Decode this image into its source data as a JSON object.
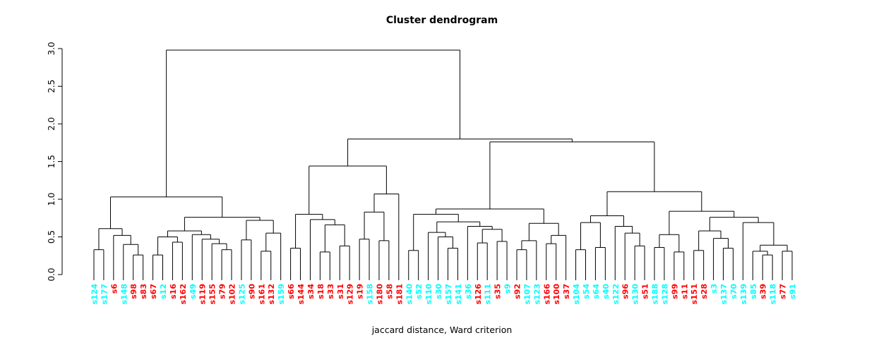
{
  "chart_data": {
    "type": "dendrogram",
    "title": "Cluster dendrogram",
    "xlabel": "jaccard distance, Ward criterion",
    "ylabel": "",
    "y_axis": {
      "tick_labels": [
        "0.0",
        "0.5",
        "1.0",
        "1.5",
        "2.0",
        "2.5",
        "3.0"
      ],
      "tick_values": [
        0.0,
        0.5,
        1.0,
        1.5,
        2.0,
        2.5,
        3.0
      ],
      "range": [
        0.0,
        3.0
      ]
    },
    "legend": "none",
    "grid": false,
    "colors": {
      "cyan": "#00FFFF",
      "red": "#FF0000",
      "line": "#000000",
      "background": "#FFFFFF"
    },
    "root_height": 2.98,
    "leaves": [
      {
        "label": "s124",
        "group": "cyan"
      },
      {
        "label": "s177",
        "group": "cyan"
      },
      {
        "label": "s6",
        "group": "red"
      },
      {
        "label": "s148",
        "group": "cyan"
      },
      {
        "label": "s98",
        "group": "red"
      },
      {
        "label": "s83",
        "group": "red"
      },
      {
        "label": "s67",
        "group": "red"
      },
      {
        "label": "s12",
        "group": "cyan"
      },
      {
        "label": "s16",
        "group": "red"
      },
      {
        "label": "s162",
        "group": "red"
      },
      {
        "label": "s49",
        "group": "cyan"
      },
      {
        "label": "s119",
        "group": "red"
      },
      {
        "label": "s155",
        "group": "red"
      },
      {
        "label": "s79",
        "group": "red"
      },
      {
        "label": "s102",
        "group": "red"
      },
      {
        "label": "s125",
        "group": "cyan"
      },
      {
        "label": "s90",
        "group": "red"
      },
      {
        "label": "s161",
        "group": "red"
      },
      {
        "label": "s132",
        "group": "red"
      },
      {
        "label": "s159",
        "group": "cyan"
      },
      {
        "label": "s66",
        "group": "red"
      },
      {
        "label": "s144",
        "group": "red"
      },
      {
        "label": "s34",
        "group": "red"
      },
      {
        "label": "s18",
        "group": "red"
      },
      {
        "label": "s33",
        "group": "red"
      },
      {
        "label": "s31",
        "group": "red"
      },
      {
        "label": "s129",
        "group": "red"
      },
      {
        "label": "s19",
        "group": "red"
      },
      {
        "label": "s158",
        "group": "cyan"
      },
      {
        "label": "s180",
        "group": "red"
      },
      {
        "label": "s58",
        "group": "red"
      },
      {
        "label": "s181",
        "group": "red"
      },
      {
        "label": "s140",
        "group": "cyan"
      },
      {
        "label": "s52",
        "group": "cyan"
      },
      {
        "label": "s110",
        "group": "cyan"
      },
      {
        "label": "s30",
        "group": "cyan"
      },
      {
        "label": "s157",
        "group": "cyan"
      },
      {
        "label": "s141",
        "group": "cyan"
      },
      {
        "label": "s36",
        "group": "cyan"
      },
      {
        "label": "s126",
        "group": "red"
      },
      {
        "label": "s111",
        "group": "cyan"
      },
      {
        "label": "s35",
        "group": "red"
      },
      {
        "label": "s9",
        "group": "cyan"
      },
      {
        "label": "s92",
        "group": "red"
      },
      {
        "label": "s107",
        "group": "cyan"
      },
      {
        "label": "s123",
        "group": "cyan"
      },
      {
        "label": "s166",
        "group": "red"
      },
      {
        "label": "s100",
        "group": "red"
      },
      {
        "label": "s37",
        "group": "red"
      },
      {
        "label": "s104",
        "group": "cyan"
      },
      {
        "label": "s54",
        "group": "cyan"
      },
      {
        "label": "s64",
        "group": "cyan"
      },
      {
        "label": "s40",
        "group": "cyan"
      },
      {
        "label": "s122",
        "group": "cyan"
      },
      {
        "label": "s96",
        "group": "red"
      },
      {
        "label": "s130",
        "group": "cyan"
      },
      {
        "label": "s51",
        "group": "red"
      },
      {
        "label": "s188",
        "group": "cyan"
      },
      {
        "label": "s128",
        "group": "cyan"
      },
      {
        "label": "s99",
        "group": "red"
      },
      {
        "label": "s11",
        "group": "red"
      },
      {
        "label": "s151",
        "group": "red"
      },
      {
        "label": "s28",
        "group": "red"
      },
      {
        "label": "s3",
        "group": "cyan"
      },
      {
        "label": "s137",
        "group": "cyan"
      },
      {
        "label": "s70",
        "group": "cyan"
      },
      {
        "label": "s139",
        "group": "cyan"
      },
      {
        "label": "s85",
        "group": "cyan"
      },
      {
        "label": "s39",
        "group": "red"
      },
      {
        "label": "s118",
        "group": "cyan"
      },
      {
        "label": "s77",
        "group": "red"
      },
      {
        "label": "s91",
        "group": "cyan"
      }
    ],
    "tree": {
      "h": 2.98,
      "c": [
        {
          "h": 1.03,
          "c": [
            {
              "h": 0.61,
              "c": [
                {
                  "h": 0.33,
                  "c": [
                    "s124",
                    "s177"
                  ]
                },
                {
                  "h": 0.52,
                  "c": [
                    "s6",
                    {
                      "h": 0.4,
                      "c": [
                        "s148",
                        {
                          "h": 0.26,
                          "c": [
                            "s98",
                            "s83"
                          ]
                        }
                      ]
                    }
                  ]
                }
              ]
            },
            {
              "h": 0.76,
              "c": [
                {
                  "h": 0.58,
                  "c": [
                    {
                      "h": 0.5,
                      "c": [
                        {
                          "h": 0.26,
                          "c": [
                            "s67",
                            "s12"
                          ]
                        },
                        {
                          "h": 0.43,
                          "c": [
                            "s16",
                            "s162"
                          ]
                        }
                      ]
                    },
                    {
                      "h": 0.53,
                      "c": [
                        "s49",
                        {
                          "h": 0.47,
                          "c": [
                            "s119",
                            {
                              "h": 0.41,
                              "c": [
                                "s155",
                                {
                                  "h": 0.33,
                                  "c": [
                                    "s79",
                                    "s102"
                                  ]
                                }
                              ]
                            }
                          ]
                        }
                      ]
                    }
                  ]
                },
                {
                  "h": 0.72,
                  "c": [
                    {
                      "h": 0.46,
                      "c": [
                        "s125",
                        "s90"
                      ]
                    },
                    {
                      "h": 0.55,
                      "c": [
                        {
                          "h": 0.31,
                          "c": [
                            "s161",
                            "s132"
                          ]
                        },
                        "s159"
                      ]
                    }
                  ]
                }
              ]
            }
          ]
        },
        {
          "h": 1.8,
          "c": [
            {
              "h": 1.44,
              "c": [
                {
                  "h": 0.8,
                  "c": [
                    {
                      "h": 0.35,
                      "c": [
                        "s66",
                        "s144"
                      ]
                    },
                    {
                      "h": 0.73,
                      "c": [
                        "s34",
                        {
                          "h": 0.66,
                          "c": [
                            {
                              "h": 0.3,
                              "c": [
                                "s18",
                                "s33"
                              ]
                            },
                            {
                              "h": 0.38,
                              "c": [
                                "s31",
                                "s129"
                              ]
                            }
                          ]
                        }
                      ]
                    }
                  ]
                },
                {
                  "h": 1.07,
                  "c": [
                    {
                      "h": 0.83,
                      "c": [
                        {
                          "h": 0.47,
                          "c": [
                            "s19",
                            "s158"
                          ]
                        },
                        {
                          "h": 0.45,
                          "c": [
                            "s180",
                            "s58"
                          ]
                        }
                      ]
                    },
                    "s181"
                  ]
                }
              ]
            },
            {
              "h": 1.76,
              "c": [
                {
                  "h": 0.87,
                  "c": [
                    {
                      "h": 0.8,
                      "c": [
                        {
                          "h": 0.32,
                          "c": [
                            "s140",
                            "s52"
                          ]
                        },
                        {
                          "h": 0.7,
                          "c": [
                            {
                              "h": 0.56,
                              "c": [
                                "s110",
                                {
                                  "h": 0.5,
                                  "c": [
                                    "s30",
                                    {
                                      "h": 0.35,
                                      "c": [
                                        "s157",
                                        "s141"
                                      ]
                                    }
                                  ]
                                }
                              ]
                            },
                            {
                              "h": 0.64,
                              "c": [
                                "s36",
                                {
                                  "h": 0.6,
                                  "c": [
                                    {
                                      "h": 0.42,
                                      "c": [
                                        "s126",
                                        "s111"
                                      ]
                                    },
                                    {
                                      "h": 0.44,
                                      "c": [
                                        "s35",
                                        "s9"
                                      ]
                                    }
                                  ]
                                }
                              ]
                            }
                          ]
                        }
                      ]
                    },
                    {
                      "h": 0.68,
                      "c": [
                        {
                          "h": 0.45,
                          "c": [
                            {
                              "h": 0.33,
                              "c": [
                                "s92",
                                "s107"
                              ]
                            },
                            "s123"
                          ]
                        },
                        {
                          "h": 0.52,
                          "c": [
                            {
                              "h": 0.41,
                              "c": [
                                "s166",
                                "s100"
                              ]
                            },
                            "s37"
                          ]
                        }
                      ]
                    }
                  ]
                },
                {
                  "h": 1.1,
                  "c": [
                    {
                      "h": 0.78,
                      "c": [
                        {
                          "h": 0.69,
                          "c": [
                            {
                              "h": 0.33,
                              "c": [
                                "s104",
                                "s54"
                              ]
                            },
                            {
                              "h": 0.36,
                              "c": [
                                "s64",
                                "s40"
                              ]
                            }
                          ]
                        },
                        {
                          "h": 0.64,
                          "c": [
                            "s122",
                            {
                              "h": 0.55,
                              "c": [
                                "s96",
                                {
                                  "h": 0.38,
                                  "c": [
                                    "s130",
                                    "s51"
                                  ]
                                }
                              ]
                            }
                          ]
                        }
                      ]
                    },
                    {
                      "h": 0.84,
                      "c": [
                        {
                          "h": 0.53,
                          "c": [
                            {
                              "h": 0.36,
                              "c": [
                                "s188",
                                "s128"
                              ]
                            },
                            {
                              "h": 0.3,
                              "c": [
                                "s99",
                                "s11"
                              ]
                            }
                          ]
                        },
                        {
                          "h": 0.76,
                          "c": [
                            {
                              "h": 0.58,
                              "c": [
                                {
                                  "h": 0.32,
                                  "c": [
                                    "s151",
                                    "s28"
                                  ]
                                },
                                {
                                  "h": 0.48,
                                  "c": [
                                    "s3",
                                    {
                                      "h": 0.35,
                                      "c": [
                                        "s137",
                                        "s70"
                                      ]
                                    }
                                  ]
                                }
                              ]
                            },
                            {
                              "h": 0.69,
                              "c": [
                                "s139",
                                {
                                  "h": 0.39,
                                  "c": [
                                    {
                                      "h": 0.31,
                                      "c": [
                                        "s85",
                                        {
                                          "h": 0.26,
                                          "c": [
                                            "s39",
                                            "s118"
                                          ]
                                        }
                                      ]
                                    },
                                    {
                                      "h": 0.31,
                                      "c": [
                                        "s77",
                                        "s91"
                                      ]
                                    }
                                  ]
                                }
                              ]
                            }
                          ]
                        }
                      ]
                    }
                  ]
                }
              ]
            }
          ]
        }
      ]
    }
  }
}
